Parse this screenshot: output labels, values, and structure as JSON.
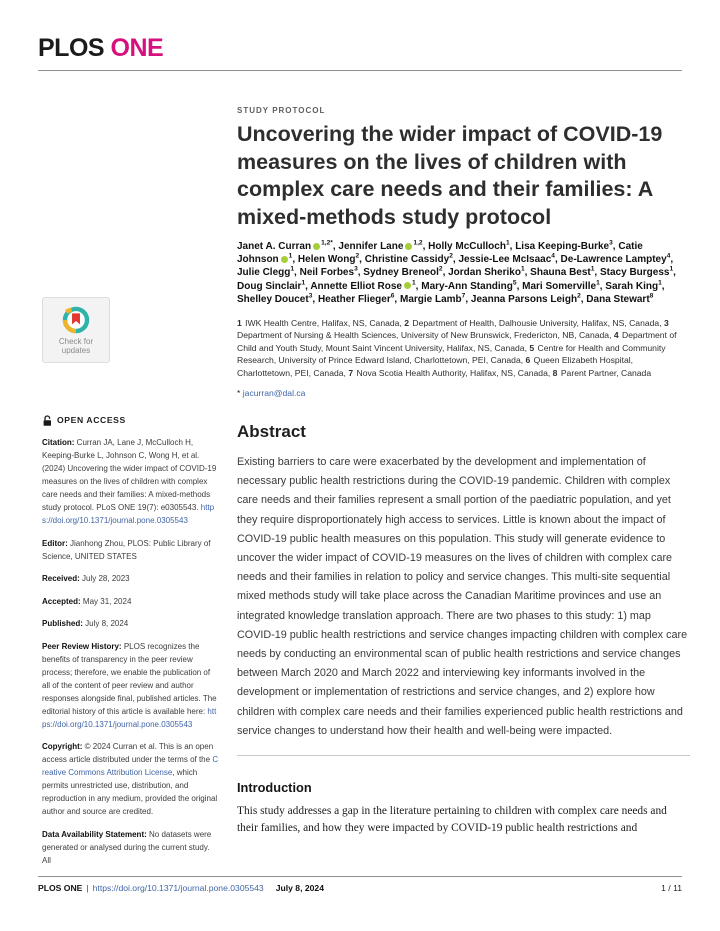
{
  "journal": {
    "logo_plos": "PLOS",
    "logo_one": "ONE"
  },
  "badge": {
    "line1": "Check for",
    "line2": "updates"
  },
  "sidebar": {
    "open_access_label": "OPEN ACCESS",
    "citation": {
      "label": "Citation:",
      "text": " Curran JA, Lane J, McCulloch H, Keeping-Burke L, Johnson C, Wong H, et al. (2024) Uncovering the wider impact of COVID-19 measures on the lives of children with complex care needs and their families: A mixed-methods study protocol. PLoS ONE 19(7): e0305543. ",
      "link": "https://doi.org/10.1371/journal.pone.0305543"
    },
    "editor": {
      "label": "Editor:",
      "text": " Jianhong Zhou, PLOS: Public Library of Science, UNITED STATES"
    },
    "received": {
      "label": "Received:",
      "text": " July 28, 2023"
    },
    "accepted": {
      "label": "Accepted:",
      "text": " May 31, 2024"
    },
    "published": {
      "label": "Published:",
      "text": " July 8, 2024"
    },
    "peer_review": {
      "label": "Peer Review History:",
      "text": " PLOS recognizes the benefits of transparency in the peer review process; therefore, we enable the publication of all of the content of peer review and author responses alongside final, published articles. The editorial history of this article is available here: ",
      "link": "https://doi.org/10.1371/journal.pone.0305543"
    },
    "copyright": {
      "label": "Copyright:",
      "text": " © 2024 Curran et al. This is an open access article distributed under the terms of the ",
      "link": "Creative Commons Attribution License",
      "text_after": ", which permits unrestricted use, distribution, and reproduction in any medium, provided the original author and source are credited."
    },
    "data_availability": {
      "label": "Data Availability Statement:",
      "text": " No datasets were generated or analysed during the current study. All"
    }
  },
  "article": {
    "kicker": "STUDY PROTOCOL",
    "title": "Uncovering the wider impact of COVID-19 measures on the lives of children with complex care needs and their families: A mixed-methods study protocol",
    "authors": [
      {
        "name": "Janet A. Curran",
        "orcid": true,
        "sup": "1,2*"
      },
      {
        "name": "Jennifer Lane",
        "orcid": true,
        "sup": "1,2"
      },
      {
        "name": "Holly McCulloch",
        "orcid": false,
        "sup": "1"
      },
      {
        "name": "Lisa Keeping-Burke",
        "orcid": false,
        "sup": "3"
      },
      {
        "name": "Catie Johnson",
        "orcid": true,
        "sup": "1"
      },
      {
        "name": "Helen Wong",
        "orcid": false,
        "sup": "2"
      },
      {
        "name": "Christine Cassidy",
        "orcid": false,
        "sup": "2"
      },
      {
        "name": "Jessie-Lee McIsaac",
        "orcid": false,
        "sup": "4"
      },
      {
        "name": "De-Lawrence Lamptey",
        "orcid": false,
        "sup": "4"
      },
      {
        "name": "Julie Clegg",
        "orcid": false,
        "sup": "1"
      },
      {
        "name": "Neil Forbes",
        "orcid": false,
        "sup": "3"
      },
      {
        "name": "Sydney Breneol",
        "orcid": false,
        "sup": "2"
      },
      {
        "name": "Jordan Sheriko",
        "orcid": false,
        "sup": "1"
      },
      {
        "name": "Shauna Best",
        "orcid": false,
        "sup": "1"
      },
      {
        "name": "Stacy Burgess",
        "orcid": false,
        "sup": "1"
      },
      {
        "name": "Doug Sinclair",
        "orcid": false,
        "sup": "1"
      },
      {
        "name": "Annette Elliot Rose",
        "orcid": true,
        "sup": "1"
      },
      {
        "name": "Mary-Ann Standing",
        "orcid": false,
        "sup": "5"
      },
      {
        "name": "Mari Somerville",
        "orcid": false,
        "sup": "1"
      },
      {
        "name": "Sarah King",
        "orcid": false,
        "sup": "1"
      },
      {
        "name": "Shelley Doucet",
        "orcid": false,
        "sup": "3"
      },
      {
        "name": "Heather Flieger",
        "orcid": false,
        "sup": "6"
      },
      {
        "name": "Margie Lamb",
        "orcid": false,
        "sup": "7"
      },
      {
        "name": "Jeanna Parsons Leigh",
        "orcid": false,
        "sup": "2"
      },
      {
        "name": "Dana Stewart",
        "orcid": false,
        "sup": "8"
      }
    ],
    "affiliations": [
      {
        "num": "1",
        "text": "IWK Health Centre, Halifax, NS, Canada,"
      },
      {
        "num": "2",
        "text": "Department of Health, Dalhousie University, Halifax, NS, Canada,"
      },
      {
        "num": "3",
        "text": "Department of Nursing & Health Sciences, University of New Brunswick, Fredericton, NB, Canada,"
      },
      {
        "num": "4",
        "text": "Department of Child and Youth Study, Mount Saint Vincent University, Halifax, NS, Canada,"
      },
      {
        "num": "5",
        "text": "Centre for Health and Community Research, University of Prince Edward Island, Charlottetown, PEI, Canada,"
      },
      {
        "num": "6",
        "text": "Queen Elizabeth Hospital, Charlottetown, PEI, Canada,"
      },
      {
        "num": "7",
        "text": "Nova Scotia Health Authority, Halifax, NS, Canada,"
      },
      {
        "num": "8",
        "text": "Parent Partner, Canada"
      }
    ],
    "correspondence": {
      "marker": "*",
      "email": "jacurran@dal.ca"
    },
    "abstract": {
      "heading": "Abstract",
      "body": "Existing barriers to care were exacerbated by the development and implementation of necessary public health restrictions during the COVID-19 pandemic. Children with complex care needs and their families represent a small portion of the paediatric population, and yet they require disproportionately high access to services. Little is known about the impact of COVID-19 public health measures on this population. This study will generate evidence to uncover the wider impact of COVID-19 measures on the lives of children with complex care needs and their families in relation to policy and service changes. This multi-site sequential mixed methods study will take place across the Canadian Maritime provinces and use an integrated knowledge translation approach. There are two phases to this study: 1) map COVID-19 public health restrictions and service changes impacting children with complex care needs by conducting an environmental scan of public health restrictions and service changes between March 2020 and March 2022 and interviewing key informants involved in the development or implementation of restrictions and service changes, and 2) explore how children with complex care needs and their families experienced public health restrictions and service changes to understand how their health and well-being were impacted."
    },
    "introduction": {
      "heading": "Introduction",
      "body": "This study addresses a gap in the literature pertaining to children with complex care needs and their families, and how they were impacted by COVID-19 public health restrictions and"
    }
  },
  "footer": {
    "journal": "PLOS ONE",
    "separator": "|",
    "doi": "https://doi.org/10.1371/journal.pone.0305543",
    "date": "July 8, 2024",
    "page": "1 / 11"
  },
  "colors": {
    "accent_magenta": "#d6117e",
    "link_blue": "#4165a7",
    "orcid_green": "#a6ce39",
    "crossmark_teal": "#2db3a9",
    "crossmark_yellow": "#f0b429",
    "crossmark_red": "#e2372f"
  }
}
